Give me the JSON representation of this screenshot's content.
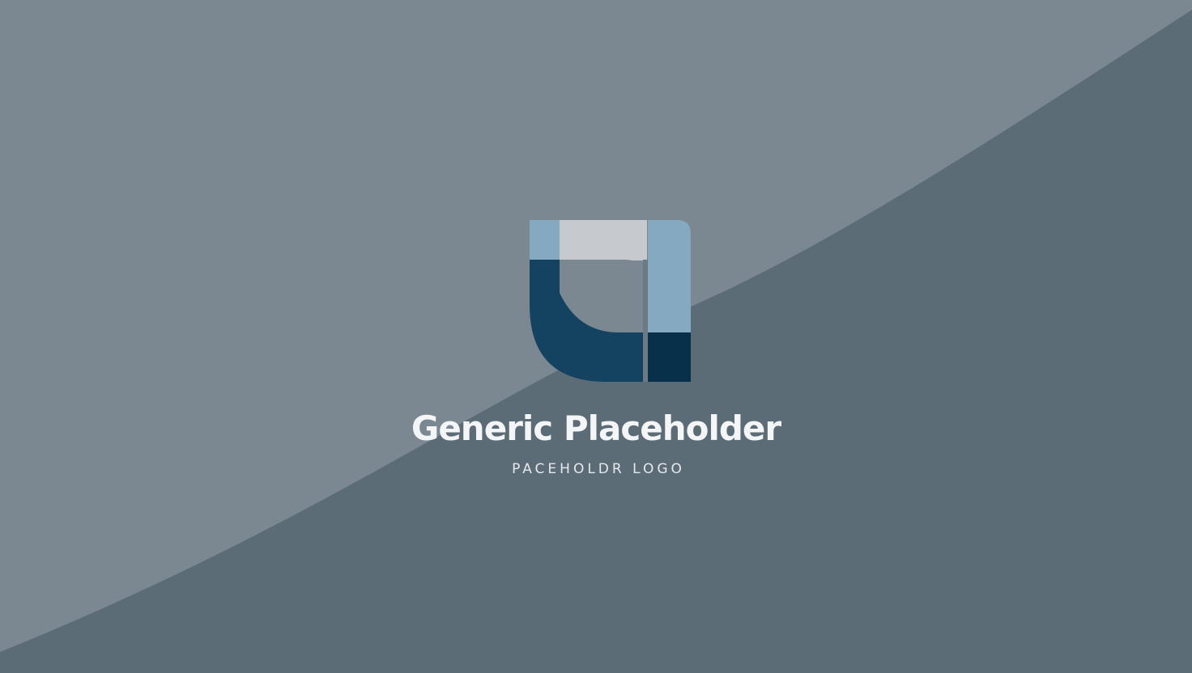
{
  "brand": {
    "name": "Generic Placeholder",
    "tagline": "PACEHOLDR LOGO"
  },
  "colors": {
    "background_light": "#7c8891",
    "background_dark": "#5c6c77",
    "logo_light_blue": "#84a9c0",
    "logo_pale_grey": "#c6cacf",
    "logo_mid_blue": "#144261",
    "logo_dark_navy": "#07304a",
    "text_primary": "#f4f5f6",
    "text_secondary": "#e6e9ec"
  },
  "icons": {
    "logo": "abstract-square-quadrant-logo-icon"
  }
}
